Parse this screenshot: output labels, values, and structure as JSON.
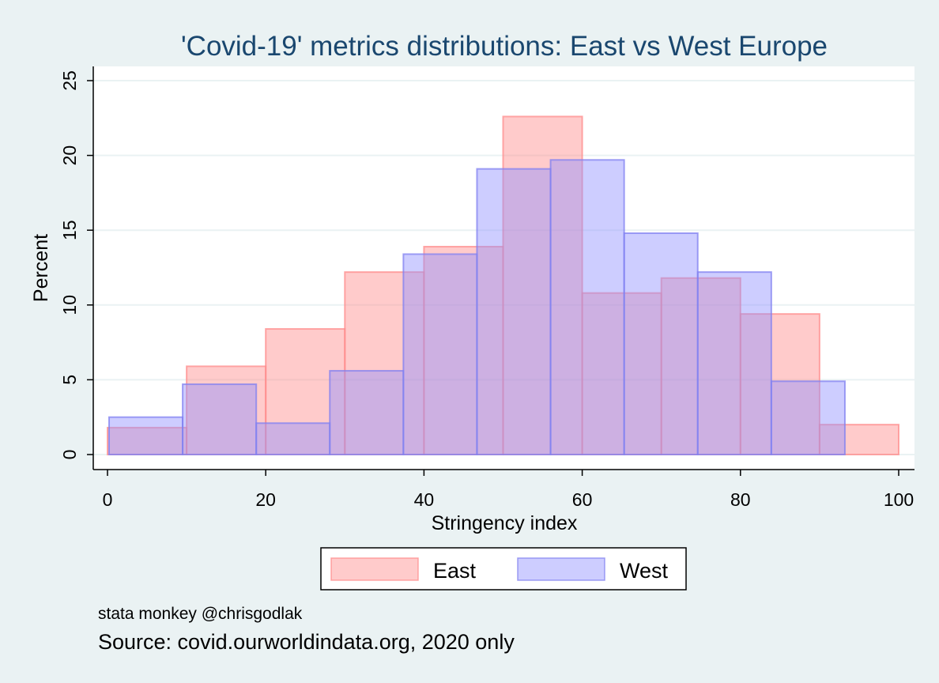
{
  "chart_data": {
    "type": "bar",
    "subtype": "overlaid-histogram",
    "title": "'Covid-19' metrics distributions: East vs West Europe",
    "xlabel": "Stringency index",
    "ylabel": "Percent",
    "xlim": [
      0,
      100
    ],
    "ylim": [
      0,
      25
    ],
    "xticks": [
      0,
      20,
      40,
      60,
      80,
      100
    ],
    "yticks": [
      0,
      5,
      10,
      15,
      20,
      25
    ],
    "grid": true,
    "legend_position": "bottom",
    "series": [
      {
        "name": "East",
        "fill": "#ff8c8c",
        "stroke": "#ff8c8c",
        "bins": [
          {
            "start": 0,
            "end": 10,
            "value": 1.8
          },
          {
            "start": 10,
            "end": 20,
            "value": 5.9
          },
          {
            "start": 20,
            "end": 30,
            "value": 8.4
          },
          {
            "start": 30,
            "end": 40,
            "value": 12.2
          },
          {
            "start": 40,
            "end": 50,
            "value": 13.9
          },
          {
            "start": 50,
            "end": 60,
            "value": 22.6
          },
          {
            "start": 60,
            "end": 70,
            "value": 10.8
          },
          {
            "start": 70,
            "end": 80,
            "value": 11.8
          },
          {
            "start": 80,
            "end": 90,
            "value": 9.4
          },
          {
            "start": 90,
            "end": 100,
            "value": 2.0
          }
        ]
      },
      {
        "name": "West",
        "fill": "#9090ff",
        "stroke": "#8080f0",
        "bins": [
          {
            "start": 0.2,
            "end": 9.5,
            "value": 2.5
          },
          {
            "start": 9.5,
            "end": 18.8,
            "value": 4.7
          },
          {
            "start": 18.8,
            "end": 28.1,
            "value": 2.1
          },
          {
            "start": 28.1,
            "end": 37.4,
            "value": 5.6
          },
          {
            "start": 37.4,
            "end": 46.7,
            "value": 13.4
          },
          {
            "start": 46.7,
            "end": 56.0,
            "value": 19.1
          },
          {
            "start": 56.0,
            "end": 65.3,
            "value": 19.7
          },
          {
            "start": 65.3,
            "end": 74.6,
            "value": 14.8
          },
          {
            "start": 74.6,
            "end": 83.9,
            "value": 12.2
          },
          {
            "start": 83.9,
            "end": 93.2,
            "value": 4.9
          }
        ]
      }
    ],
    "notes": [
      "stata monkey @chrisgodlak"
    ],
    "caption": "Source: covid.ourworldindata.org, 2020 only"
  }
}
